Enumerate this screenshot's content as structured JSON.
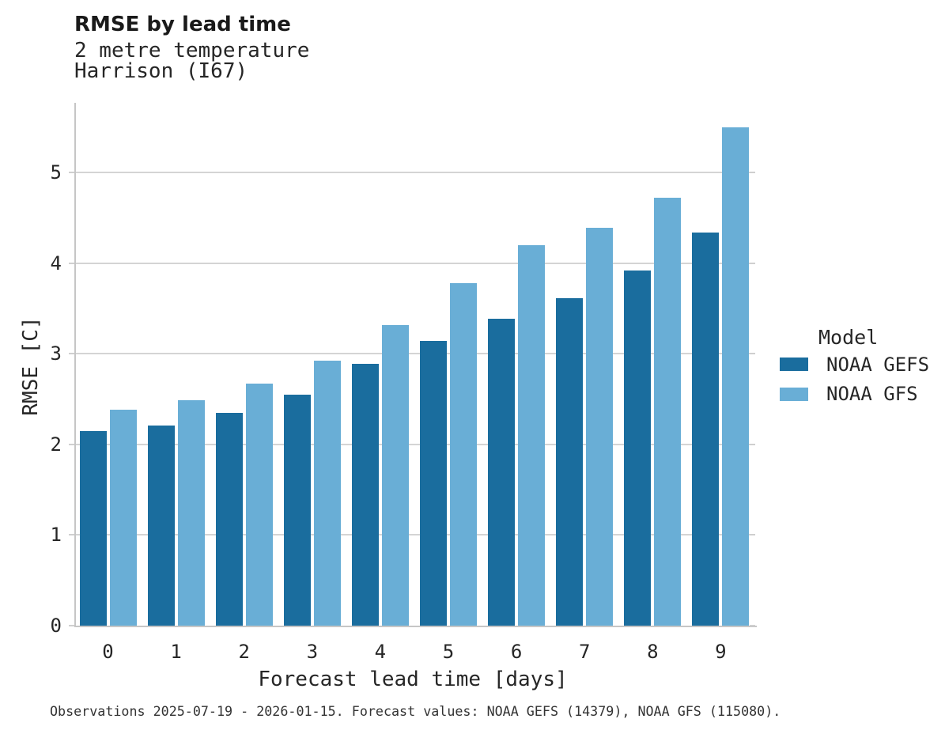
{
  "title": "RMSE by lead time",
  "subtitle_line1": "2 metre temperature",
  "subtitle_line2": "Harrison (I67)",
  "footer": "Observations 2025-07-19 - 2026-01-15. Forecast values: NOAA GEFS (14379), NOAA GFS (115080).",
  "colors": {
    "gefs": "#1a6d9e",
    "gfs": "#69aed6",
    "gridline": "#d4d4d4",
    "spine": "#c6c6c6",
    "tick": "#cfcfcf",
    "text": "#262626",
    "footer_text": "#333333"
  },
  "legend": {
    "title": "Model",
    "items": [
      {
        "label": "NOAA GEFS",
        "color_key": "gefs"
      },
      {
        "label": "NOAA GFS",
        "color_key": "gfs"
      }
    ]
  },
  "chart_data": {
    "type": "bar",
    "title": "RMSE by lead time",
    "subtitle": "2 metre temperature, Harrison (I67)",
    "xlabel": "Forecast lead time [days]",
    "ylabel": "RMSE [C]",
    "categories": [
      "0",
      "1",
      "2",
      "3",
      "4",
      "5",
      "6",
      "7",
      "8",
      "9"
    ],
    "series": [
      {
        "name": "NOAA GEFS",
        "color": "#1a6d9e",
        "values": [
          2.15,
          2.21,
          2.35,
          2.55,
          2.89,
          3.14,
          3.39,
          3.61,
          3.92,
          4.34
        ]
      },
      {
        "name": "NOAA GFS",
        "color": "#69aed6",
        "values": [
          2.38,
          2.49,
          2.67,
          2.92,
          3.32,
          3.78,
          4.2,
          4.39,
          4.72,
          5.5
        ]
      }
    ],
    "yticks": [
      0,
      1,
      2,
      3,
      4,
      5
    ],
    "ylim": [
      0,
      5.77
    ],
    "grid": "horizontal",
    "legend_position": "right"
  }
}
